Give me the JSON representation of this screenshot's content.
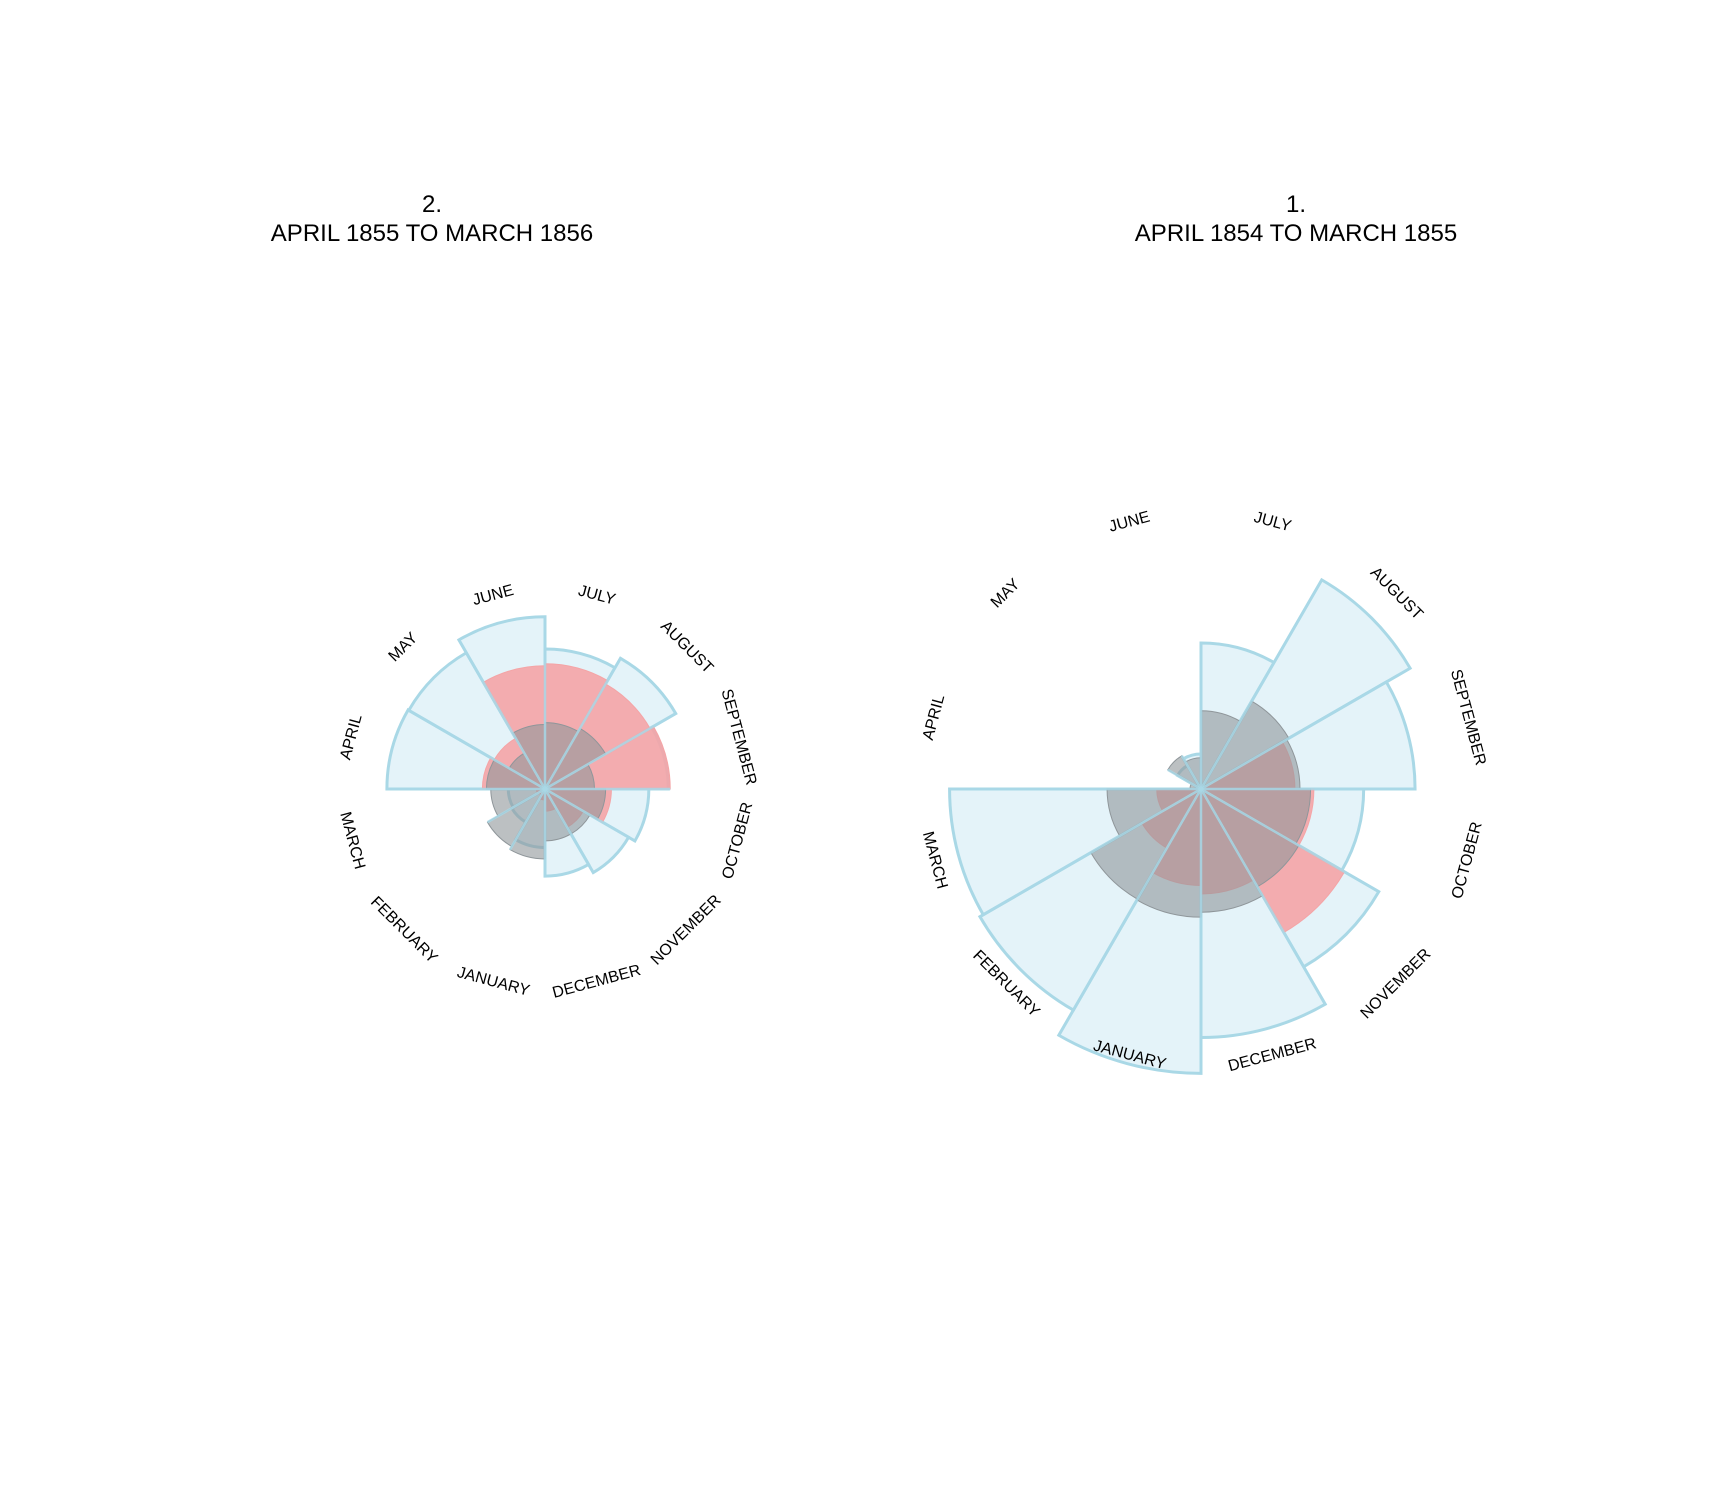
{
  "colors": {
    "disease_fill": "#e4f3f9",
    "disease_stroke": "#a9d8e6",
    "wounds_fill": "#f4a4a6",
    "other_fill": "#8f969a",
    "divider": "#a9d8e6"
  },
  "chart_data": [
    {
      "type": "polar-area",
      "id": "left",
      "title_line1": "2.",
      "title_line2": "APRIL 1855 TO MARCH 1856",
      "months": [
        "APRIL",
        "MAY",
        "JUNE",
        "JULY",
        "AUGUST",
        "SEPTEMBER",
        "OCTOBER",
        "NOVEMBER",
        "DECEMBER",
        "JANUARY",
        "FEBRUARY",
        "MARCH"
      ],
      "series": [
        {
          "key": "disease",
          "values": [
            1020,
            1010,
            1210,
            800,
            930,
            620,
            440,
            380,
            310,
            140,
            60,
            55
          ]
        },
        {
          "key": "wounds",
          "values": [
            160,
            140,
            620,
            640,
            600,
            640,
            180,
            80,
            20,
            5,
            2,
            3
          ]
        },
        {
          "key": "other",
          "values": [
            140,
            70,
            170,
            180,
            200,
            100,
            150,
            110,
            110,
            200,
            180,
            120
          ]
        }
      ]
    },
    {
      "type": "polar-area",
      "id": "right",
      "title_line1": "1.",
      "title_line2": "APRIL 1854 TO MARCH 1855",
      "months": [
        "APRIL",
        "MAY",
        "JUNE",
        "JULY",
        "AUGUST",
        "SEPTEMBER",
        "OCTOBER",
        "NOVEMBER",
        "DECEMBER",
        "JANUARY",
        "FEBRUARY",
        "MARCH"
      ],
      "series": [
        {
          "key": "disease",
          "values": [
            1,
            30,
            50,
            870,
            2380,
            1870,
            1080,
            1720,
            2520,
            3300,
            2660,
            2580
          ]
        },
        {
          "key": "wounds",
          "values": [
            0,
            0,
            0,
            0,
            0,
            360,
            520,
            1120,
            450,
            380,
            190,
            80
          ]
        },
        {
          "key": "other",
          "values": [
            5,
            60,
            40,
            250,
            420,
            400,
            490,
            520,
            620,
            670,
            660,
            360
          ]
        }
      ]
    }
  ]
}
